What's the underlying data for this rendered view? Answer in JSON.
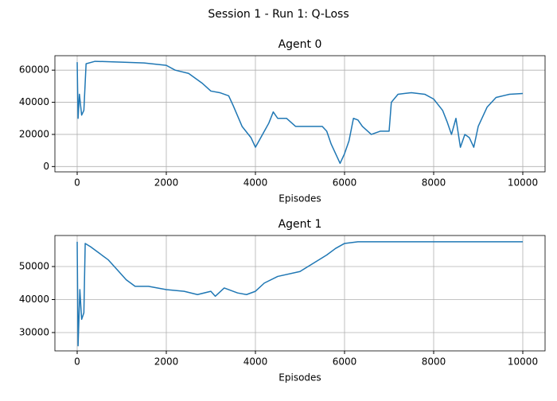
{
  "title": "Session 1 - Run 1: Q-Loss",
  "chart_data": [
    {
      "type": "line",
      "title": "Agent 0",
      "xlabel": "Episodes",
      "color": "#1f77b4",
      "grid": true,
      "x": [
        0,
        20,
        50,
        100,
        150,
        200,
        400,
        1000,
        1500,
        2000,
        2200,
        2500,
        2800,
        3000,
        3200,
        3400,
        3500,
        3700,
        3900,
        4000,
        4100,
        4200,
        4300,
        4400,
        4500,
        4700,
        4900,
        5200,
        5500,
        5600,
        5700,
        5800,
        5900,
        6000,
        6100,
        6200,
        6300,
        6400,
        6600,
        6800,
        7000,
        7050,
        7200,
        7500,
        7800,
        8000,
        8200,
        8300,
        8400,
        8500,
        8600,
        8700,
        8800,
        8900,
        9000,
        9200,
        9400,
        9700,
        10000
      ],
      "values": [
        65000,
        30000,
        45000,
        32000,
        35000,
        64000,
        65500,
        65000,
        64500,
        63000,
        60000,
        58000,
        52000,
        47000,
        46000,
        44000,
        38000,
        25000,
        18000,
        12000,
        17000,
        22000,
        27000,
        34000,
        30000,
        30000,
        25000,
        25000,
        25000,
        22000,
        14000,
        8000,
        2000,
        8000,
        16000,
        30000,
        29000,
        25000,
        20000,
        22000,
        22000,
        40000,
        45000,
        46000,
        45000,
        42000,
        35000,
        28000,
        20000,
        30000,
        12000,
        20000,
        18000,
        12000,
        25000,
        37000,
        43000,
        45000,
        45500
      ],
      "xlim": [
        -500,
        10500
      ],
      "xticks": [
        0,
        2000,
        4000,
        6000,
        8000,
        10000
      ],
      "ylim": [
        -3300,
        69000
      ],
      "yticks": [
        0,
        20000,
        40000,
        60000
      ]
    },
    {
      "type": "line",
      "title": "Agent 1",
      "xlabel": "Episodes",
      "color": "#1f77b4",
      "grid": true,
      "x": [
        0,
        20,
        60,
        100,
        150,
        180,
        300,
        500,
        700,
        900,
        1100,
        1300,
        1600,
        2000,
        2400,
        2700,
        3000,
        3100,
        3300,
        3600,
        3800,
        4000,
        4200,
        4500,
        5000,
        5300,
        5600,
        5800,
        6000,
        6300,
        7000,
        8000,
        9000,
        10000
      ],
      "values": [
        57500,
        26000,
        43000,
        34000,
        36000,
        57000,
        56000,
        54000,
        52000,
        49000,
        46000,
        44000,
        44000,
        43000,
        42500,
        41500,
        42500,
        41000,
        43500,
        42000,
        41500,
        42500,
        45000,
        47000,
        48500,
        51000,
        53500,
        55500,
        57000,
        57500,
        57500,
        57500,
        57500,
        57500
      ],
      "xlim": [
        -500,
        10500
      ],
      "xticks": [
        0,
        2000,
        4000,
        6000,
        8000,
        10000
      ],
      "ylim": [
        24450,
        59400
      ],
      "yticks": [
        30000,
        40000,
        50000
      ]
    }
  ]
}
